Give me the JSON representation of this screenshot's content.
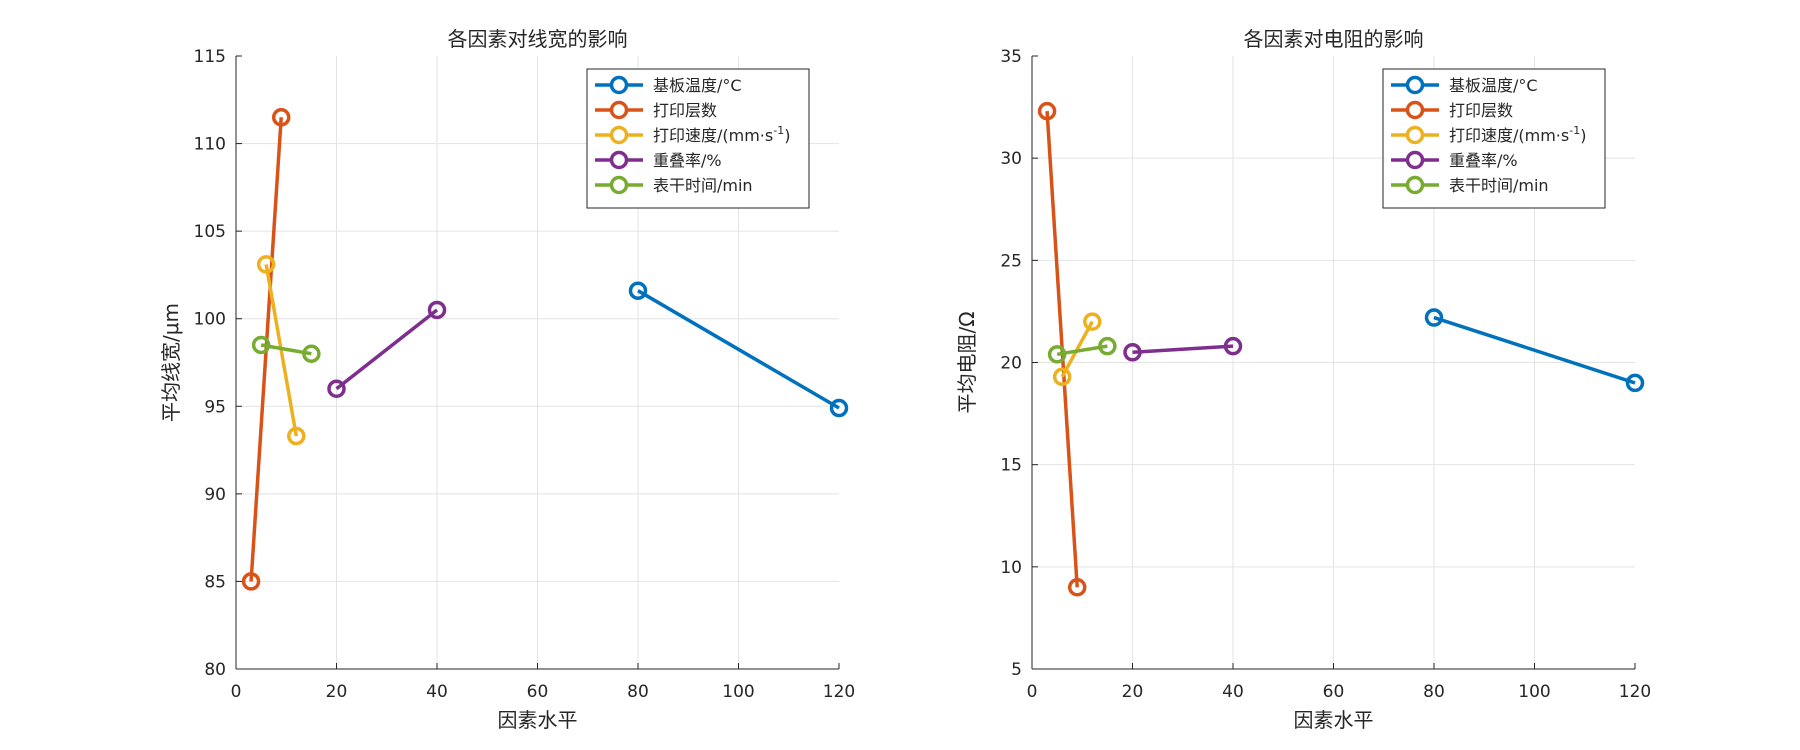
{
  "chart_data": [
    {
      "type": "line",
      "title": "各因素对线宽的影响",
      "xlabel": "因素水平",
      "ylabel": "平均线宽/μm",
      "xlim": [
        0,
        120
      ],
      "ylim": [
        80,
        115
      ],
      "xticks": [
        0,
        20,
        40,
        60,
        80,
        100,
        120
      ],
      "yticks": [
        80,
        85,
        90,
        95,
        100,
        105,
        110,
        115
      ],
      "grid": true,
      "legend_position": "top-right",
      "series": [
        {
          "name": "基板温度/°C",
          "color": "#0072BD",
          "x": [
            80,
            120
          ],
          "y": [
            101.6,
            94.9
          ]
        },
        {
          "name": "打印层数",
          "color": "#D95319",
          "x": [
            3,
            9
          ],
          "y": [
            85.0,
            111.5
          ]
        },
        {
          "name": "打印速度/(mm·s",
          "name_sup": "-1",
          "name_suffix": ")",
          "color": "#EDB120",
          "x": [
            6,
            12
          ],
          "y": [
            103.1,
            93.3
          ]
        },
        {
          "name": "重叠率/%",
          "color": "#7E2F8E",
          "x": [
            20,
            40
          ],
          "y": [
            96.0,
            100.5
          ]
        },
        {
          "name": "表干时间/min",
          "color": "#77AC30",
          "x": [
            5,
            15
          ],
          "y": [
            98.5,
            98.0
          ]
        }
      ]
    },
    {
      "type": "line",
      "title": "各因素对电阻的影响",
      "xlabel": "因素水平",
      "ylabel": "平均电阻/Ω",
      "xlim": [
        0,
        120
      ],
      "ylim": [
        5,
        35
      ],
      "xticks": [
        0,
        20,
        40,
        60,
        80,
        100,
        120
      ],
      "yticks": [
        5,
        10,
        15,
        20,
        25,
        30,
        35
      ],
      "grid": true,
      "legend_position": "top-right",
      "series": [
        {
          "name": "基板温度/°C",
          "color": "#0072BD",
          "x": [
            80,
            120
          ],
          "y": [
            22.2,
            19.0
          ]
        },
        {
          "name": "打印层数",
          "color": "#D95319",
          "x": [
            3,
            9
          ],
          "y": [
            32.3,
            9.0
          ]
        },
        {
          "name": "打印速度/(mm·s",
          "name_sup": "-1",
          "name_suffix": ")",
          "color": "#EDB120",
          "x": [
            6,
            12
          ],
          "y": [
            19.3,
            22.0
          ]
        },
        {
          "name": "重叠率/%",
          "color": "#7E2F8E",
          "x": [
            20,
            40
          ],
          "y": [
            20.5,
            20.8
          ]
        },
        {
          "name": "表干时间/min",
          "color": "#77AC30",
          "x": [
            5,
            15
          ],
          "y": [
            20.4,
            20.8
          ]
        }
      ]
    }
  ]
}
